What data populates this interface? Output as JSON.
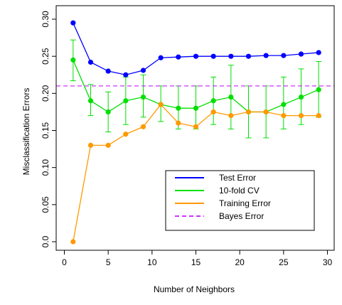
{
  "chart_data": {
    "type": "line",
    "title": "",
    "xlabel": "Number of Neighbors",
    "ylabel": "Misclassification Errors",
    "xlim": [
      0,
      30
    ],
    "ylim": [
      0,
      0.3
    ],
    "x_ticks": [
      0,
      5,
      10,
      15,
      20,
      25,
      30
    ],
    "x_tick_labels": [
      "0",
      "5",
      "10",
      "15",
      "20",
      "25",
      "30"
    ],
    "y_ticks": [
      0,
      0.05,
      0.1,
      0.15,
      0.2,
      0.25,
      0.3
    ],
    "y_tick_labels": [
      "0.0",
      "0.05",
      "0.10",
      "0.15",
      "0.20",
      "0.25",
      "0.30"
    ],
    "grid": false,
    "legend_position": "bottom-right",
    "x": [
      1,
      3,
      5,
      7,
      9,
      11,
      13,
      15,
      17,
      19,
      21,
      23,
      25,
      27,
      29
    ],
    "series": [
      {
        "name": "Test Error",
        "color": "#0000ff",
        "style": "line-with-markers",
        "values": [
          0.295,
          0.242,
          0.23,
          0.225,
          0.231,
          0.248,
          0.249,
          0.25,
          0.25,
          0.25,
          0.25,
          0.251,
          0.251,
          0.253,
          0.255
        ]
      },
      {
        "name": "10-fold CV",
        "color": "#00e000",
        "style": "line-with-markers-and-error-bars",
        "values": [
          0.245,
          0.19,
          0.175,
          0.19,
          0.195,
          0.185,
          0.18,
          0.18,
          0.19,
          0.195,
          0.175,
          0.175,
          0.185,
          0.195,
          0.205
        ],
        "error_low": [
          0.217,
          0.17,
          0.148,
          0.158,
          0.168,
          0.162,
          0.152,
          0.152,
          0.158,
          0.152,
          0.14,
          0.14,
          0.152,
          0.158,
          0.168
        ],
        "error_high": [
          0.272,
          0.212,
          0.202,
          0.222,
          0.225,
          0.21,
          0.21,
          0.21,
          0.222,
          0.238,
          0.21,
          0.21,
          0.222,
          0.233,
          0.243
        ]
      },
      {
        "name": "Training Error",
        "color": "#ff9900",
        "style": "line-with-markers",
        "values": [
          0.0,
          0.13,
          0.13,
          0.145,
          0.155,
          0.185,
          0.16,
          0.155,
          0.175,
          0.17,
          0.175,
          0.175,
          0.17,
          0.17,
          0.17
        ]
      }
    ],
    "reference_lines": [
      {
        "name": "Bayes Error",
        "color": "#cc33ff",
        "style": "dashed",
        "y": 0.21
      }
    ]
  }
}
